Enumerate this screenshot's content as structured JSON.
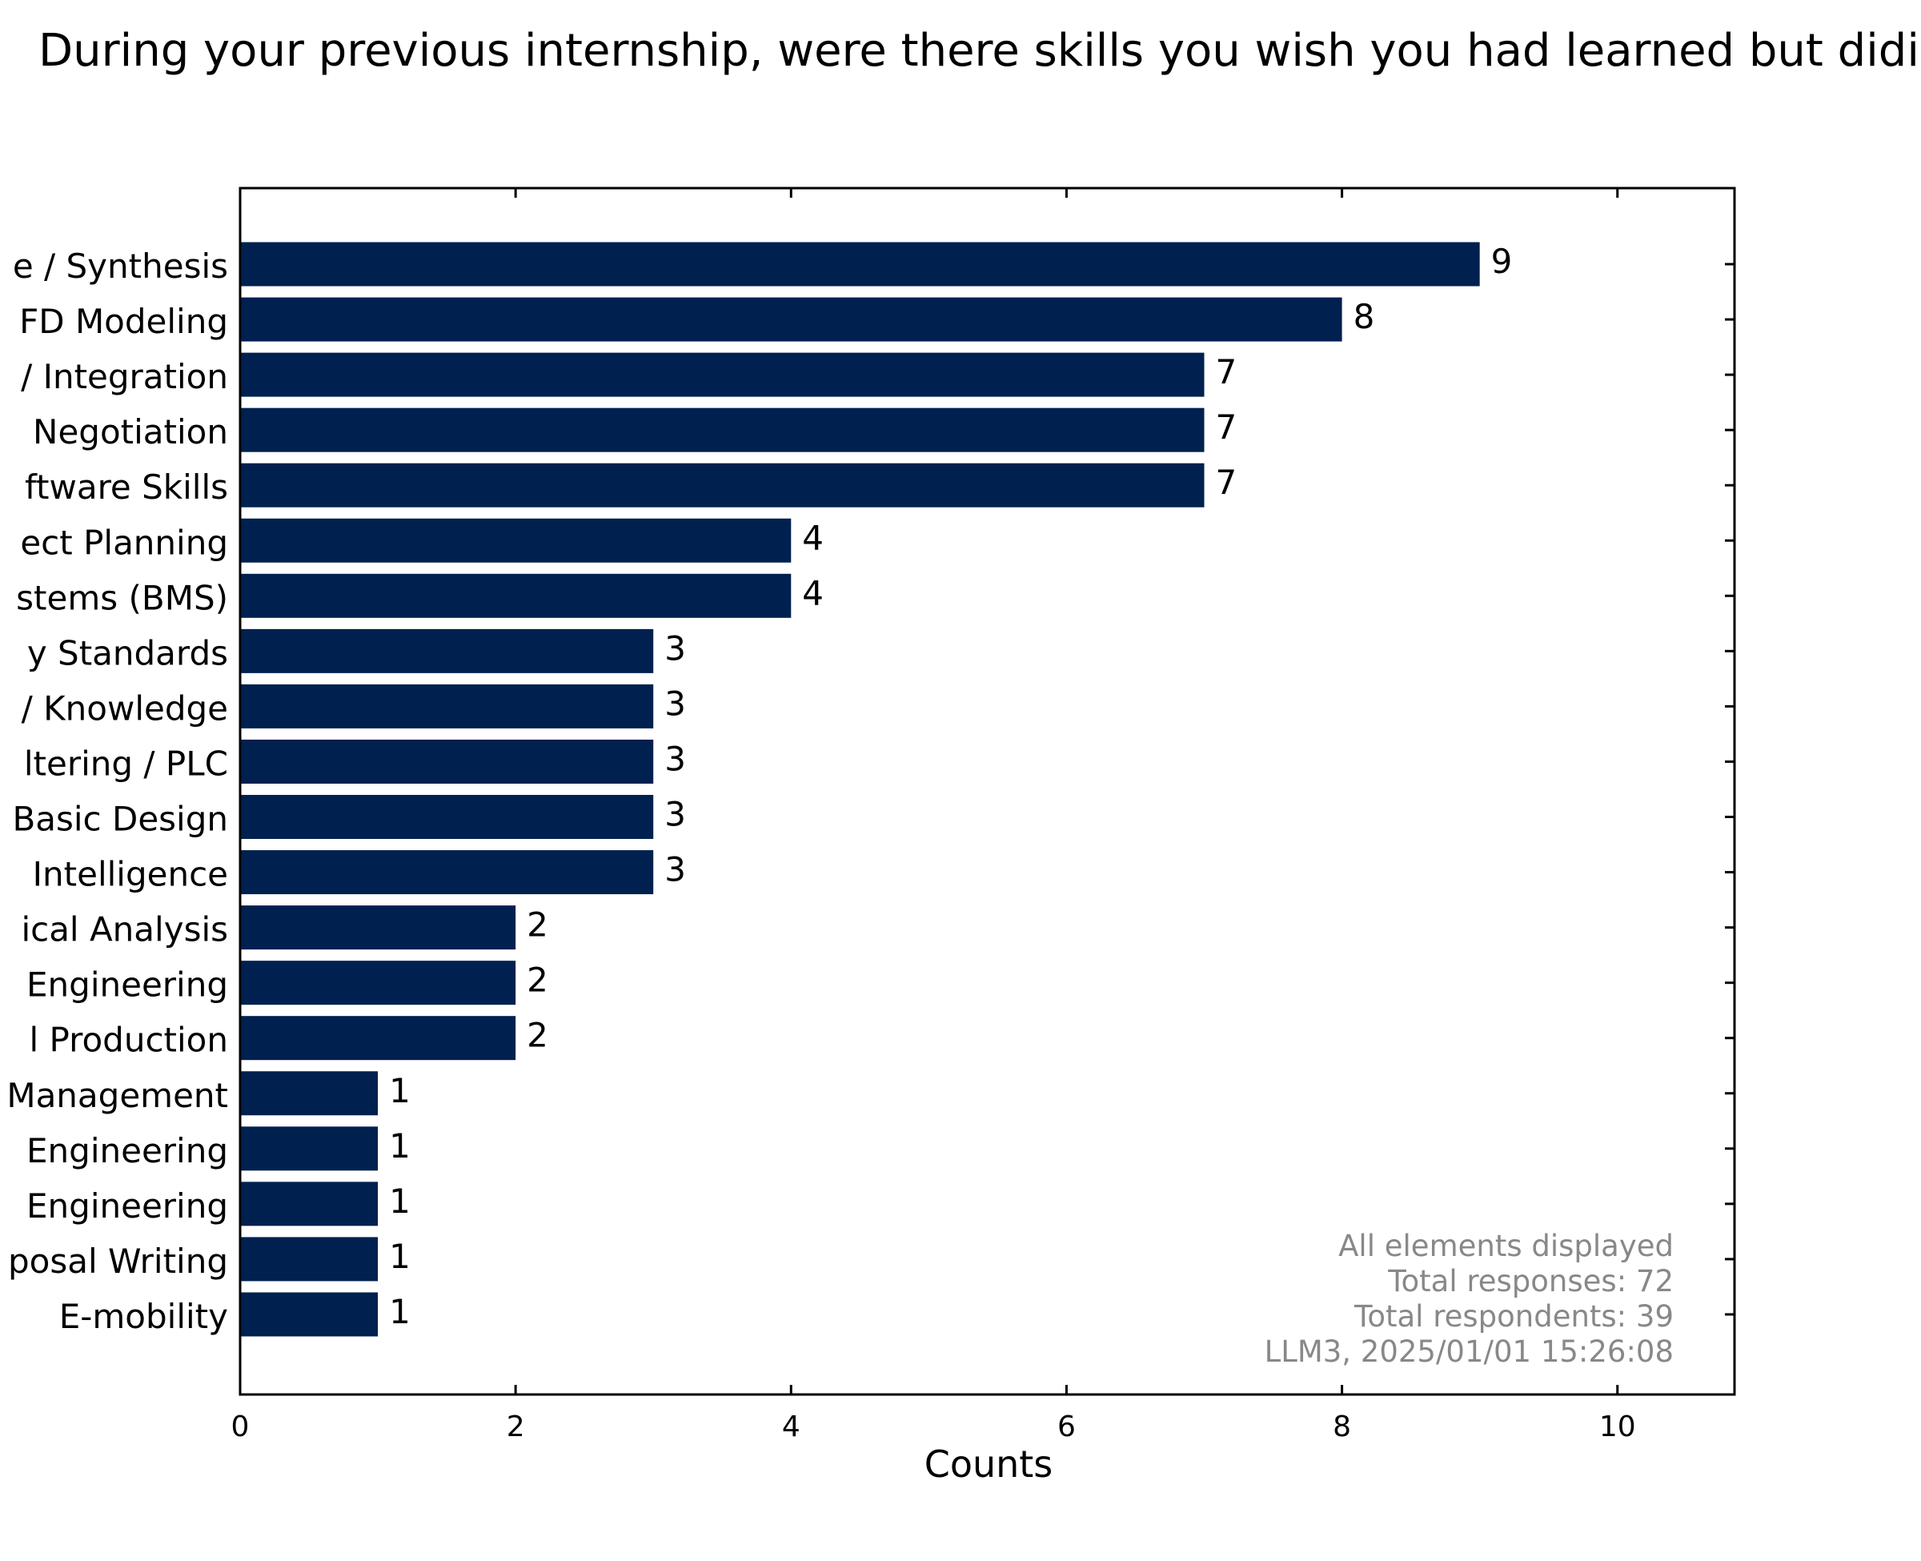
{
  "chart_data": {
    "type": "bar",
    "orientation": "horizontal",
    "title": "During your previous internship, were there skills you wish you had learned but didi",
    "xlabel": "Counts",
    "ylabel": "",
    "xlim": [
      0,
      10.85
    ],
    "xticks": [
      0,
      2,
      4,
      6,
      8,
      10
    ],
    "grid": false,
    "categories": [
      "e / Synthesis",
      "FD Modeling",
      "/ Integration",
      "Negotiation",
      "ftware Skills",
      "ect Planning",
      "stems (BMS)",
      "y Standards",
      "/ Knowledge",
      "ltering / PLC",
      "Basic Design",
      "Intelligence",
      "ical Analysis",
      "Engineering",
      "l Production",
      "Management",
      "Engineering",
      "Engineering",
      "posal Writing",
      "E-mobility"
    ],
    "values": [
      9,
      8,
      7,
      7,
      7,
      4,
      4,
      3,
      3,
      3,
      3,
      3,
      2,
      2,
      2,
      1,
      1,
      1,
      1,
      1
    ],
    "bar_color": "#002050",
    "annotations": [
      "All elements displayed",
      "Total responses: 72",
      "Total respondents: 39",
      "LLM3, 2025/01/01 15:26:08"
    ]
  }
}
